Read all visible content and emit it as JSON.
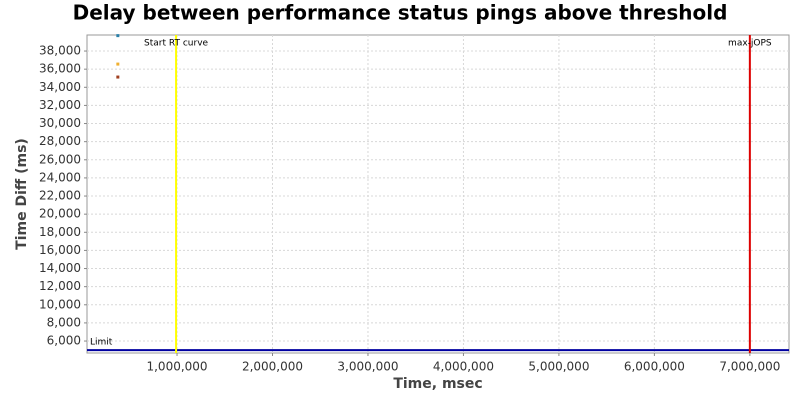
{
  "chart_data": {
    "type": "scatter",
    "title": "Delay between performance status pings above threshold",
    "xlabel": "Time, msec",
    "ylabel": "Time Diff (ms)",
    "xlim": [
      57000,
      7410000
    ],
    "ylim": [
      4680,
      39770
    ],
    "xticks": [
      {
        "value": 1000000,
        "label": "1,000,000"
      },
      {
        "value": 2000000,
        "label": "2,000,000"
      },
      {
        "value": 3000000,
        "label": "3,000,000"
      },
      {
        "value": 4000000,
        "label": "4,000,000"
      },
      {
        "value": 5000000,
        "label": "5,000,000"
      },
      {
        "value": 6000000,
        "label": "6,000,000"
      },
      {
        "value": 7000000,
        "label": "7,000,000"
      }
    ],
    "yticks": [
      {
        "value": 6000,
        "label": "6,000"
      },
      {
        "value": 8000,
        "label": "8,000"
      },
      {
        "value": 10000,
        "label": "10,000"
      },
      {
        "value": 12000,
        "label": "12,000"
      },
      {
        "value": 14000,
        "label": "14,000"
      },
      {
        "value": 16000,
        "label": "16,000"
      },
      {
        "value": 18000,
        "label": "18,000"
      },
      {
        "value": 20000,
        "label": "20,000"
      },
      {
        "value": 22000,
        "label": "22,000"
      },
      {
        "value": 24000,
        "label": "24,000"
      },
      {
        "value": 26000,
        "label": "26,000"
      },
      {
        "value": 28000,
        "label": "28,000"
      },
      {
        "value": 30000,
        "label": "30,000"
      },
      {
        "value": 32000,
        "label": "32,000"
      },
      {
        "value": 34000,
        "label": "34,000"
      },
      {
        "value": 36000,
        "label": "36,000"
      },
      {
        "value": 38000,
        "label": "38,000"
      }
    ],
    "grid": true,
    "series": [
      {
        "color": "#2a7fa8",
        "x": [
          380000
        ],
        "values": [
          39700
        ]
      },
      {
        "color": "#f0b030",
        "x": [
          380000
        ],
        "values": [
          36560
        ]
      },
      {
        "color": "#a04020",
        "x": [
          380000
        ],
        "values": [
          35130
        ]
      }
    ],
    "vlines": [
      {
        "label": "Start RT curve",
        "value": 990000,
        "color": "#ffff00"
      },
      {
        "label": "max-jOPS",
        "value": 7000000,
        "color": "#dd0000"
      }
    ],
    "hlines": [
      {
        "label": "Limit",
        "value": 5000,
        "color": "#0000a0"
      }
    ]
  }
}
